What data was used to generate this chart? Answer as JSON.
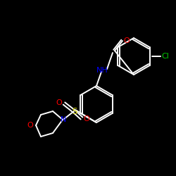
{
  "background_color": "#000000",
  "bond_color": "#ffffff",
  "atom_colors": {
    "O": "#ff0000",
    "N": "#0000ff",
    "S": "#cccc00",
    "Cl": "#00cc00",
    "C": "#ffffff",
    "H": "#ffffff"
  },
  "figsize": [
    2.5,
    2.5
  ],
  "dpi": 100,
  "ring_r": 26,
  "lw": 1.4
}
